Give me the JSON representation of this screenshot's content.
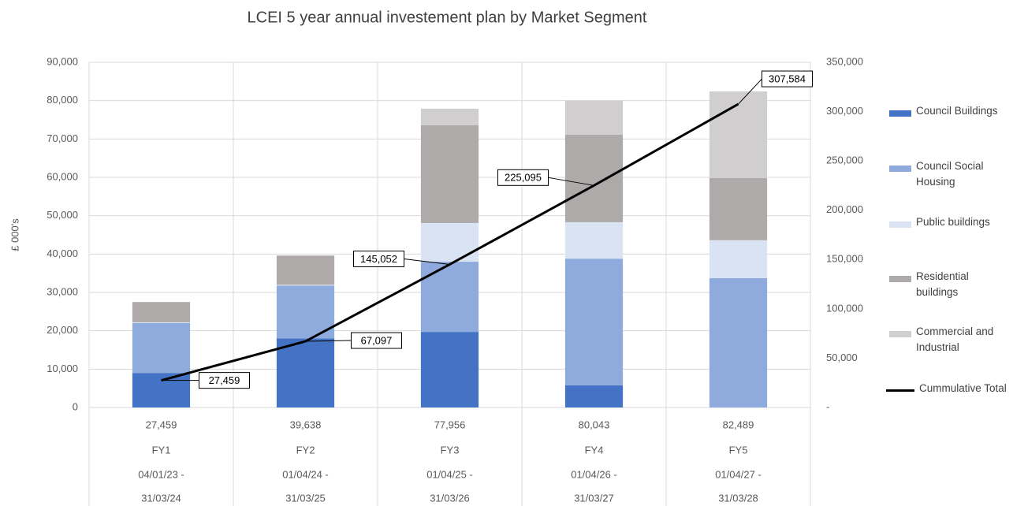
{
  "chart_data": {
    "type": "stacked-bar-line",
    "title": "LCEI 5 year annual investement plan by Market Segment",
    "y_label": "£ 000's",
    "categories": [
      "FY1",
      "FY2",
      "FY3",
      "FY4",
      "FY5"
    ],
    "category_totals": [
      "27,459",
      "39,638",
      "77,956",
      "80,043",
      "82,489"
    ],
    "period_start": [
      "04/01/23 -",
      "01/04/24 -",
      "01/04/25 -",
      "01/04/26 -",
      "01/04/27 -"
    ],
    "period_end": [
      "31/03/24",
      "31/03/25",
      "31/03/26",
      "31/03/27",
      "31/03/28"
    ],
    "series": [
      {
        "name": "Council Buildings",
        "color": "#4472c4",
        "values": [
          9000,
          18000,
          19700,
          5800,
          0
        ]
      },
      {
        "name": "Council Social Housing",
        "color": "#8faadc",
        "values": [
          13000,
          13800,
          18300,
          33000,
          33700
        ]
      },
      {
        "name": "Public buildings",
        "color": "#dae3f3",
        "values": [
          200,
          200,
          10100,
          9500,
          9900
        ]
      },
      {
        "name": "Residential buildings",
        "color": "#aeaaaa",
        "values": [
          5300,
          7600,
          25500,
          22800,
          16200
        ]
      },
      {
        "name": "Commercial and Industrial",
        "color": "#d0cece",
        "values": [
          0,
          0,
          4300,
          8900,
          22600
        ]
      },
      {
        "name": "Cummulative Total",
        "color": "#000000",
        "type": "line",
        "axis": "y2",
        "values": [
          27459,
          67097,
          145052,
          225095,
          307584
        ],
        "value_labels": [
          "27,459",
          "67,097",
          "145,052",
          "225,095",
          "307,584"
        ]
      }
    ],
    "ylim": [
      0,
      90000
    ],
    "yticks": [
      0,
      {
        "value": 10000,
        "label": "10,000"
      },
      {
        "value": 20000,
        "label": "20,000"
      },
      {
        "value": 30000,
        "label": "30,000"
      },
      {
        "value": 40000,
        "label": "40,000"
      },
      {
        "value": 50000,
        "label": "50,000"
      },
      {
        "value": 60000,
        "label": "60,000"
      },
      {
        "value": 70000,
        "label": "70,000"
      },
      {
        "value": 80000,
        "label": "80,000"
      },
      {
        "value": 90000,
        "label": "90,000"
      }
    ],
    "y2lim": [
      0,
      350000
    ],
    "y2ticks": [
      {
        "value": 0,
        "label": "-"
      },
      {
        "value": 50000,
        "label": "50,000"
      },
      {
        "value": 100000,
        "label": "100,000"
      },
      {
        "value": 150000,
        "label": "150,000"
      },
      {
        "value": 200000,
        "label": "200,000"
      },
      {
        "value": 250000,
        "label": "250,000"
      },
      {
        "value": 300000,
        "label": "300,000"
      },
      {
        "value": 350000,
        "label": "350,000"
      }
    ],
    "grid": true,
    "legend": "right"
  }
}
